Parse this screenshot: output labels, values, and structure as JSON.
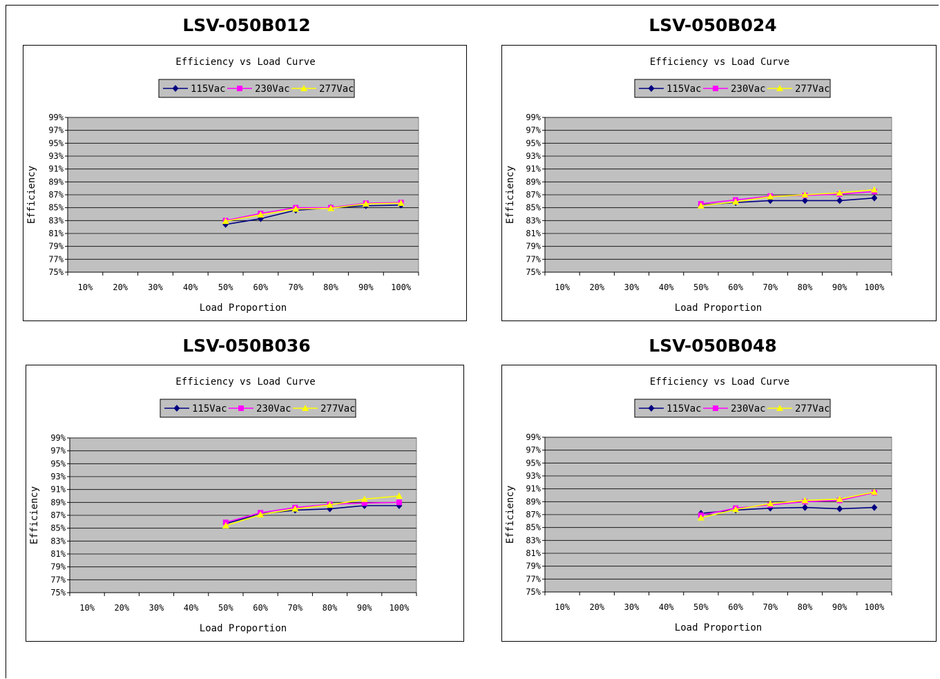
{
  "charts": [
    {
      "model": "LSV-050B012",
      "chart_data": {
        "type": "line",
        "title": "Efficiency vs Load Curve",
        "xlabel": "Load Proportion",
        "ylabel": "Efficiency",
        "categories": [
          "10%",
          "20%",
          "30%",
          "40%",
          "50%",
          "60%",
          "70%",
          "80%",
          "90%",
          "100%"
        ],
        "y_ticks": [
          "75%",
          "77%",
          "79%",
          "81%",
          "83%",
          "85%",
          "87%",
          "89%",
          "91%",
          "93%",
          "95%",
          "97%",
          "99%"
        ],
        "ylim": [
          75,
          99
        ],
        "grid": true,
        "legend_position": "top",
        "series": [
          {
            "name": "115Vac",
            "color": "#000080",
            "marker": "diamond",
            "values": [
              null,
              null,
              null,
              null,
              82.4,
              83.3,
              84.6,
              85.0,
              85.3,
              85.4
            ]
          },
          {
            "name": "230Vac",
            "color": "#ff00ff",
            "marker": "square",
            "values": [
              null,
              null,
              null,
              null,
              83.0,
              84.1,
              85.0,
              85.0,
              85.7,
              85.8
            ]
          },
          {
            "name": "277Vac",
            "color": "#ffff00",
            "marker": "triangle",
            "values": [
              null,
              null,
              null,
              null,
              82.9,
              83.9,
              84.8,
              84.9,
              85.6,
              85.7
            ]
          }
        ]
      }
    },
    {
      "model": "LSV-050B024",
      "chart_data": {
        "type": "line",
        "title": "Efficiency vs Load Curve",
        "xlabel": "Load Proportion",
        "ylabel": "Efficiency",
        "categories": [
          "10%",
          "20%",
          "30%",
          "40%",
          "50%",
          "60%",
          "70%",
          "80%",
          "90%",
          "100%"
        ],
        "y_ticks": [
          "75%",
          "77%",
          "79%",
          "81%",
          "83%",
          "85%",
          "87%",
          "89%",
          "91%",
          "93%",
          "95%",
          "97%",
          "99%"
        ],
        "ylim": [
          75,
          99
        ],
        "grid": true,
        "legend_position": "top",
        "series": [
          {
            "name": "115Vac",
            "color": "#000080",
            "marker": "diamond",
            "values": [
              null,
              null,
              null,
              null,
              85.4,
              85.8,
              86.1,
              86.1,
              86.1,
              86.5
            ]
          },
          {
            "name": "230Vac",
            "color": "#ff00ff",
            "marker": "square",
            "values": [
              null,
              null,
              null,
              null,
              85.6,
              86.2,
              86.8,
              86.9,
              87.1,
              87.5
            ]
          },
          {
            "name": "277Vac",
            "color": "#ffff00",
            "marker": "triangle",
            "values": [
              null,
              null,
              null,
              null,
              85.3,
              85.9,
              86.7,
              87.0,
              87.3,
              87.8
            ]
          }
        ]
      }
    },
    {
      "model": "LSV-050B036",
      "chart_data": {
        "type": "line",
        "title": "Efficiency vs Load Curve",
        "xlabel": "Load Proportion",
        "ylabel": "Efficiency",
        "categories": [
          "10%",
          "20%",
          "30%",
          "40%",
          "50%",
          "60%",
          "70%",
          "80%",
          "90%",
          "100%"
        ],
        "y_ticks": [
          "75%",
          "77%",
          "79%",
          "81%",
          "83%",
          "85%",
          "87%",
          "89%",
          "91%",
          "93%",
          "95%",
          "97%",
          "99%"
        ],
        "ylim": [
          75,
          99
        ],
        "grid": true,
        "legend_position": "top",
        "series": [
          {
            "name": "115Vac",
            "color": "#000080",
            "marker": "diamond",
            "values": [
              null,
              null,
              null,
              null,
              85.7,
              87.2,
              87.8,
              88.0,
              88.5,
              88.5
            ]
          },
          {
            "name": "230Vac",
            "color": "#ff00ff",
            "marker": "square",
            "values": [
              null,
              null,
              null,
              null,
              85.9,
              87.4,
              88.2,
              88.7,
              88.9,
              89.0
            ]
          },
          {
            "name": "277Vac",
            "color": "#ffff00",
            "marker": "triangle",
            "values": [
              null,
              null,
              null,
              null,
              85.4,
              87.1,
              88.0,
              88.6,
              89.5,
              90.0
            ]
          }
        ]
      }
    },
    {
      "model": "LSV-050B048",
      "chart_data": {
        "type": "line",
        "title": "Efficiency vs Load Curve",
        "xlabel": "Load Proportion",
        "ylabel": "Efficiency",
        "categories": [
          "10%",
          "20%",
          "30%",
          "40%",
          "50%",
          "60%",
          "70%",
          "80%",
          "90%",
          "100%"
        ],
        "y_ticks": [
          "75%",
          "77%",
          "79%",
          "81%",
          "83%",
          "85%",
          "87%",
          "89%",
          "91%",
          "93%",
          "95%",
          "97%",
          "99%"
        ],
        "ylim": [
          75,
          99
        ],
        "grid": true,
        "legend_position": "top",
        "series": [
          {
            "name": "115Vac",
            "color": "#000080",
            "marker": "diamond",
            "values": [
              null,
              null,
              null,
              null,
              87.2,
              87.7,
              88.0,
              88.1,
              87.9,
              88.1
            ]
          },
          {
            "name": "230Vac",
            "color": "#ff00ff",
            "marker": "square",
            "values": [
              null,
              null,
              null,
              null,
              86.9,
              88.0,
              88.5,
              89.0,
              89.2,
              90.4
            ]
          },
          {
            "name": "277Vac",
            "color": "#ffff00",
            "marker": "triangle",
            "values": [
              null,
              null,
              null,
              null,
              86.5,
              87.8,
              88.7,
              89.2,
              89.4,
              90.5
            ]
          }
        ]
      }
    }
  ]
}
